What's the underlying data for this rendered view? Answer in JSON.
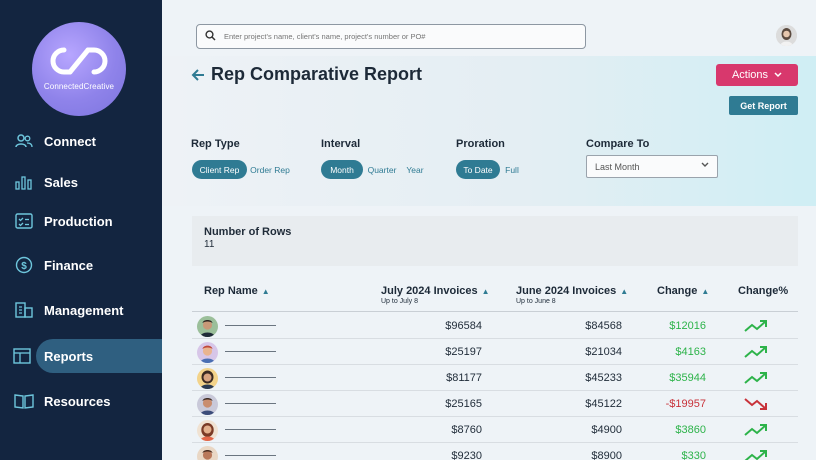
{
  "brand": {
    "logo_text": "ConnectedCreative"
  },
  "sidebar": {
    "items": [
      {
        "label": "Connect",
        "icon": "users-icon",
        "active": false
      },
      {
        "label": "Sales",
        "icon": "bar-chart-icon",
        "active": false
      },
      {
        "label": "Production",
        "icon": "checklist-icon",
        "active": false
      },
      {
        "label": "Finance",
        "icon": "dollar-circle-icon",
        "active": false
      },
      {
        "label": "Management",
        "icon": "building-icon",
        "active": false
      },
      {
        "label": "Reports",
        "icon": "table-icon",
        "active": true
      },
      {
        "label": "Resources",
        "icon": "book-icon",
        "active": false
      }
    ]
  },
  "search": {
    "placeholder": "Enter project's name, client's name, project's number or PO#"
  },
  "page": {
    "title": "Rep Comparative Report"
  },
  "buttons": {
    "actions": "Actions",
    "get_report": "Get Report"
  },
  "filters": {
    "rep_type": {
      "label": "Rep Type",
      "options": [
        "Client Rep",
        "Order Rep"
      ],
      "selected": "Client Rep"
    },
    "interval": {
      "label": "Interval",
      "options": [
        "Month",
        "Quarter",
        "Year"
      ],
      "selected": "Month"
    },
    "proration": {
      "label": "Proration",
      "options": [
        "To Date",
        "Full"
      ],
      "selected": "To Date"
    },
    "compare_to": {
      "label": "Compare To",
      "value": "Last Month"
    }
  },
  "rows_info": {
    "label": "Number of Rows",
    "value": "11"
  },
  "table": {
    "headers": {
      "rep_name": "Rep Name",
      "july": "July 2024 Invoices",
      "july_sub": "Up to July 8",
      "june": "June 2024 Invoices",
      "june_sub": "Up to June 8",
      "change": "Change",
      "change_pct": "Change%"
    },
    "rows": [
      {
        "july": "$96584",
        "june": "$84568",
        "change": "$12016",
        "trend": "up"
      },
      {
        "july": "$25197",
        "june": "$21034",
        "change": "$4163",
        "trend": "up"
      },
      {
        "july": "$81177",
        "june": "$45233",
        "change": "$35944",
        "trend": "up"
      },
      {
        "july": "$25165",
        "june": "$45122",
        "change": "-$19957",
        "trend": "down"
      },
      {
        "july": "$8760",
        "june": "$4900",
        "change": "$3860",
        "trend": "up"
      },
      {
        "july": "$9230",
        "june": "$8900",
        "change": "$330",
        "trend": "up"
      }
    ]
  },
  "colors": {
    "sidebar": "#132540",
    "accent": "#2f7b93",
    "actions": "#d8386d",
    "positive": "#2db34a",
    "negative": "#c8323a"
  }
}
